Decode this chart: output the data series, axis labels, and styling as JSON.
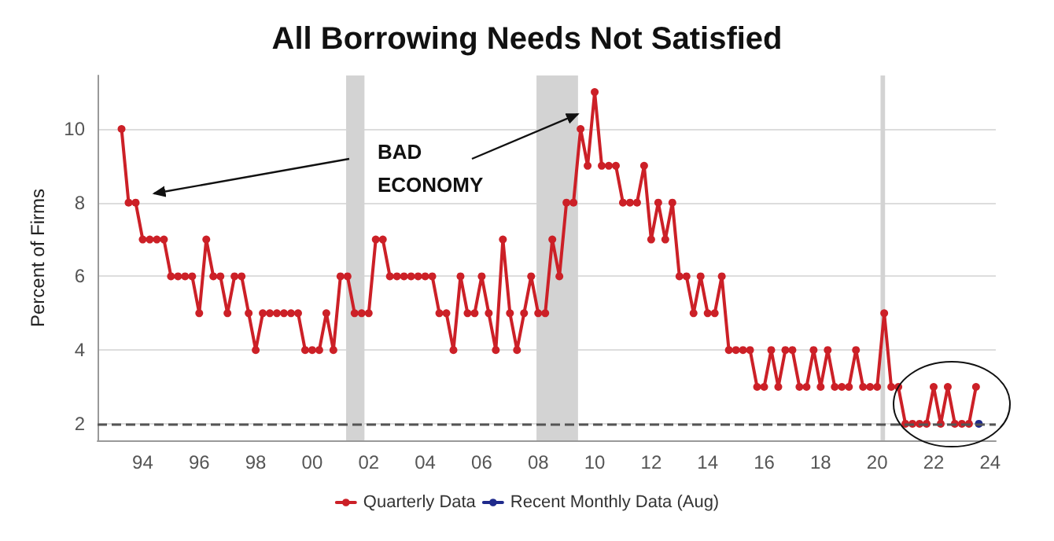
{
  "chart_data": {
    "type": "line",
    "title": "All Borrowing Needs Not Satisfied",
    "ylabel": "Percent of Firms",
    "annotations": [
      {
        "text": "BAD ECONOMY",
        "x": 2009.4,
        "y": 10.4
      }
    ],
    "series": [
      {
        "name": "Quarterly Data",
        "color": "#cc2027",
        "x": [
          1993.25,
          1993.5,
          1993.75,
          1994,
          1994.25,
          1994.5,
          1994.75,
          1995,
          1995.25,
          1995.5,
          1995.75,
          1996,
          1996.25,
          1996.5,
          1996.75,
          1997,
          1997.25,
          1997.5,
          1997.75,
          1998,
          1998.25,
          1998.5,
          1998.75,
          1999,
          1999.25,
          1999.5,
          1999.75,
          2000,
          2000.25,
          2000.5,
          2000.75,
          2001,
          2001.25,
          2001.5,
          2001.75,
          2002,
          2002.25,
          2002.5,
          2002.75,
          2003,
          2003.25,
          2003.5,
          2003.75,
          2004,
          2004.25,
          2004.5,
          2004.75,
          2005,
          2005.25,
          2005.5,
          2005.75,
          2006,
          2006.25,
          2006.5,
          2006.75,
          2007,
          2007.25,
          2007.5,
          2007.75,
          2008,
          2008.25,
          2008.5,
          2008.75,
          2009,
          2009.25,
          2009.5,
          2009.75,
          2010,
          2010.25,
          2010.5,
          2010.75,
          2011,
          2011.25,
          2011.5,
          2011.75,
          2012,
          2012.25,
          2012.5,
          2012.75,
          2013,
          2013.25,
          2013.5,
          2013.75,
          2014,
          2014.25,
          2014.5,
          2014.75,
          2015,
          2015.25,
          2015.5,
          2015.75,
          2016,
          2016.25,
          2016.5,
          2016.75,
          2017,
          2017.25,
          2017.5,
          2017.75,
          2018,
          2018.25,
          2018.5,
          2018.75,
          2019,
          2019.25,
          2019.5,
          2019.75,
          2020,
          2020.25,
          2020.5,
          2020.75,
          2021,
          2021.25,
          2021.5,
          2021.75,
          2022,
          2022.25,
          2022.5,
          2022.75,
          2023,
          2023.25,
          2023.5
        ],
        "values": [
          10,
          8,
          8,
          7,
          7,
          7,
          7,
          6,
          6,
          6,
          6,
          5,
          7,
          6,
          6,
          5,
          6,
          6,
          5,
          4,
          5,
          5,
          5,
          5,
          5,
          5,
          4,
          4,
          4,
          5,
          4,
          6,
          6,
          5,
          5,
          5,
          7,
          7,
          6,
          6,
          6,
          6,
          6,
          6,
          6,
          5,
          5,
          4,
          6,
          5,
          5,
          6,
          5,
          4,
          7,
          5,
          4,
          5,
          6,
          5,
          5,
          7,
          6,
          8,
          8,
          10,
          9,
          11,
          9,
          9,
          9,
          8,
          8,
          8,
          9,
          7,
          8,
          7,
          8,
          6,
          6,
          5,
          6,
          5,
          5,
          6,
          4,
          4,
          4,
          4,
          3,
          3,
          4,
          3,
          4,
          4,
          3,
          3,
          4,
          3,
          4,
          3,
          3,
          3,
          4,
          3,
          3,
          3,
          5,
          3,
          3,
          2,
          2,
          2,
          2,
          3,
          2,
          3,
          2,
          2,
          2,
          3
        ]
      },
      {
        "name": "Recent Monthly Data (Aug)",
        "color": "#1f2a8c",
        "x": [
          2023.6
        ],
        "values": [
          2
        ]
      }
    ],
    "xlim": [
      1992.4,
      2024.2
    ],
    "xticks": [
      {
        "value": 1994,
        "label": "94"
      },
      {
        "value": 1996,
        "label": "96"
      },
      {
        "value": 1998,
        "label": "98"
      },
      {
        "value": 2000,
        "label": "00"
      },
      {
        "value": 2002,
        "label": "02"
      },
      {
        "value": 2004,
        "label": "04"
      },
      {
        "value": 2006,
        "label": "06"
      },
      {
        "value": 2008,
        "label": "08"
      },
      {
        "value": 2010,
        "label": "10"
      },
      {
        "value": 2012,
        "label": "12"
      },
      {
        "value": 2014,
        "label": "14"
      },
      {
        "value": 2016,
        "label": "16"
      },
      {
        "value": 2018,
        "label": "18"
      },
      {
        "value": 2020,
        "label": "20"
      },
      {
        "value": 2022,
        "label": "22"
      },
      {
        "value": 2024,
        "label": "24"
      }
    ],
    "ylim": [
      1.55,
      11.45
    ],
    "yticks": [
      2,
      4,
      6,
      8,
      10
    ],
    "ref_lines": [
      {
        "axis": "y",
        "value": 2,
        "color": "#555555",
        "line_style": "dashed"
      }
    ],
    "bands": [
      {
        "axis": "x",
        "from": 2001.2,
        "to": 2001.85,
        "color": "#d3d3d3"
      },
      {
        "axis": "x",
        "from": 2007.94,
        "to": 2009.41,
        "color": "#d3d3d3"
      },
      {
        "axis": "x",
        "from": 2020.12,
        "to": 2020.28,
        "color": "#d3d3d3"
      }
    ],
    "grid": "y",
    "legend": "bottom",
    "marker": "circle",
    "line_style": "solid"
  }
}
